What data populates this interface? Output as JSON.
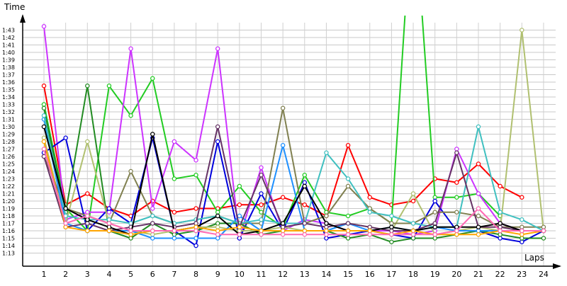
{
  "chart_data": {
    "type": "line",
    "xlabel": "Laps",
    "ylabel": "Time",
    "x": [
      1,
      2,
      3,
      4,
      5,
      6,
      7,
      8,
      9,
      10,
      11,
      12,
      13,
      14,
      15,
      16,
      17,
      18,
      19,
      20,
      21,
      22,
      23,
      24
    ],
    "x_tick_labels": [
      "1",
      "2",
      "3",
      "4",
      "5",
      "6",
      "7",
      "8",
      "9",
      "10",
      "11",
      "12",
      "13",
      "14",
      "15",
      "16",
      "17",
      "18",
      "19",
      "20",
      "21",
      "22",
      "23",
      "24"
    ],
    "y_tick_labels": [
      "1:13",
      "1:14",
      "1:15",
      "1:16",
      "1:17",
      "1:18",
      "1:19",
      "1:20",
      "1:21",
      "1:22",
      "1:23",
      "1:24",
      "1:25",
      "1:26",
      "1:27",
      "1:28",
      "1:29",
      "1:30",
      "1:31",
      "1:32",
      "1:33",
      "1:34",
      "1:35",
      "1:36",
      "1:37",
      "1:38",
      "1:39",
      "1:40",
      "1:41",
      "1:42",
      "1:43"
    ],
    "ylim_seconds": [
      72,
      104
    ],
    "y_tick_start_seconds": 73,
    "grid": true,
    "series": [
      {
        "color": "#ff0000",
        "values": [
          95.5,
          79.5,
          81,
          79,
          78,
          80,
          78.5,
          79,
          79,
          79.5,
          79.5,
          80.5,
          79.5,
          78,
          87.5,
          80.5,
          79.5,
          80,
          83,
          82.5,
          85,
          82,
          80.5,
          null
        ]
      },
      {
        "color": "#22cc22",
        "values": [
          93,
          79,
          76,
          95.5,
          91.5,
          96.5,
          83,
          83.5,
          78.5,
          82,
          78.5,
          76.5,
          83.5,
          78.5,
          78,
          79,
          77,
          122,
          80.5,
          80.5,
          81,
          78,
          null,
          null
        ]
      },
      {
        "color": "#cc33ff",
        "values": [
          103.5,
          77.5,
          78.5,
          78.5,
          100.5,
          79,
          88,
          85.5,
          100.5,
          75,
          84.5,
          76,
          77.5,
          77,
          76,
          76,
          76,
          75.5,
          76,
          87,
          81,
          77,
          76,
          76
        ]
      },
      {
        "color": "#0000dd",
        "values": [
          86.5,
          88.5,
          76,
          79,
          77,
          88.5,
          76,
          74,
          88,
          75,
          81,
          76,
          82.5,
          75,
          75.5,
          76,
          75.5,
          75,
          80,
          76,
          76,
          75,
          74.5,
          76
        ]
      },
      {
        "color": "#228b22",
        "values": [
          92.5,
          78.5,
          95.5,
          76,
          75,
          77,
          75.5,
          76,
          77,
          77,
          75.5,
          76,
          76,
          76,
          75,
          75.5,
          74.5,
          75,
          75,
          75.5,
          76,
          75.5,
          75,
          75
        ]
      },
      {
        "color": "#b0c070",
        "values": [
          88.5,
          77,
          88,
          77,
          76,
          75.5,
          76,
          76.5,
          76.5,
          76,
          76,
          76.5,
          76,
          76,
          77,
          76.5,
          76,
          81,
          75.5,
          76,
          76.5,
          76,
          103,
          76
        ]
      },
      {
        "color": "#808050",
        "values": [
          86,
          79,
          78,
          77,
          84,
          78,
          77,
          77.5,
          78,
          77,
          77,
          92.5,
          77,
          78,
          82,
          79,
          77,
          77,
          78.5,
          78.5,
          78,
          76.5,
          76.5,
          76.5
        ]
      },
      {
        "color": "#1e90ff",
        "values": [
          91,
          77,
          76,
          76,
          76,
          75,
          75,
          75,
          75,
          78,
          76,
          87.5,
          76,
          76,
          77,
          76,
          76.5,
          76,
          76.5,
          76,
          76,
          76,
          76,
          76
        ]
      },
      {
        "color": "#40c0c0",
        "values": [
          91.5,
          78,
          77.5,
          77.5,
          77,
          78,
          77,
          77.5,
          78,
          77,
          77.5,
          77,
          77,
          86.5,
          83,
          78.5,
          78,
          77,
          76.5,
          76.5,
          90,
          78.5,
          77.5,
          76
        ]
      },
      {
        "color": "#663366",
        "values": [
          86,
          76.5,
          77,
          76,
          76.5,
          77,
          76.5,
          77,
          90,
          76.5,
          83.5,
          76.5,
          77,
          76.5,
          77,
          76.5,
          76,
          76,
          77,
          86.5,
          76.5,
          76.5,
          76,
          76
        ]
      },
      {
        "color": "#000000",
        "values": [
          90,
          79,
          77.5,
          76.5,
          75.5,
          89,
          76,
          76.5,
          78,
          75.5,
          76,
          77,
          82,
          77,
          76,
          76,
          76.5,
          76,
          76.5,
          76.5,
          76.5,
          77,
          76,
          76
        ]
      },
      {
        "color": "#ffa500",
        "values": [
          88,
          76.5,
          76,
          76,
          75.5,
          76,
          76,
          76.5,
          76,
          76.5,
          76,
          76,
          76,
          76,
          76,
          76,
          75.5,
          76,
          75.5,
          75.5,
          75.5,
          76,
          75.5,
          76
        ]
      },
      {
        "color": "#ff69b4",
        "values": [
          87,
          77,
          78,
          77,
          76,
          76,
          76,
          76,
          75.5,
          75.5,
          75.5,
          75.5,
          75.5,
          75.5,
          75.5,
          75.5,
          75.5,
          75.5,
          75.5,
          76,
          79,
          76,
          76,
          76
        ]
      }
    ]
  }
}
